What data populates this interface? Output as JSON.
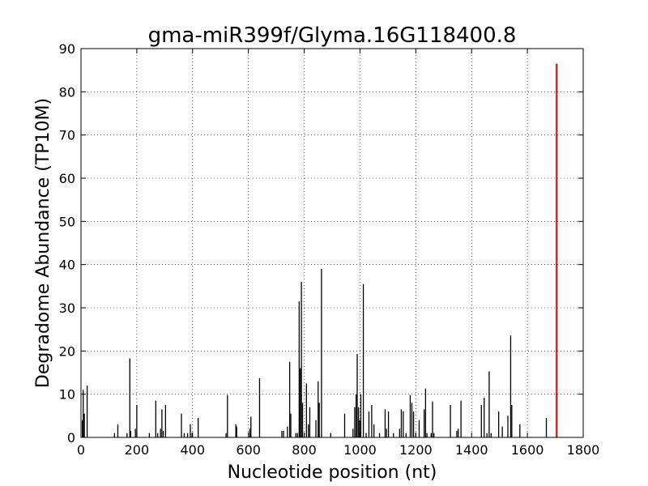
{
  "chart_data": {
    "type": "bar",
    "title": "gma-miR399f/Glyma.16G118400.8",
    "xlabel": "Nucleotide position (nt)",
    "ylabel": "Degradome Abundance (TP10M)",
    "xlim": [
      0,
      1800
    ],
    "ylim": [
      0,
      90
    ],
    "xticks": [
      0,
      200,
      400,
      600,
      800,
      1000,
      1200,
      1400,
      1600,
      1800
    ],
    "yticks": [
      0,
      10,
      20,
      30,
      40,
      50,
      60,
      70,
      80,
      90
    ],
    "grid": true,
    "grid_style": "dotted",
    "legend": "none",
    "colors": {
      "bars": "#000000",
      "target": "#d62728"
    },
    "series": [
      {
        "values": [
          [
            5,
            4
          ],
          [
            8,
            11
          ],
          [
            12,
            5.5
          ],
          [
            22,
            12
          ],
          [
            120,
            1
          ],
          [
            132,
            3
          ],
          [
            165,
            1
          ],
          [
            175,
            18.3
          ],
          [
            178,
            1.5
          ],
          [
            195,
            2
          ],
          [
            200,
            7.5
          ],
          [
            245,
            1
          ],
          [
            268,
            8.5
          ],
          [
            275,
            1
          ],
          [
            285,
            2
          ],
          [
            290,
            6.5
          ],
          [
            295,
            1.5
          ],
          [
            303,
            7.5
          ],
          [
            360,
            5.5
          ],
          [
            370,
            1
          ],
          [
            382,
            1
          ],
          [
            392,
            3
          ],
          [
            398,
            1
          ],
          [
            420,
            4.5
          ],
          [
            520,
            1
          ],
          [
            525,
            9.8
          ],
          [
            555,
            3
          ],
          [
            558,
            2.5
          ],
          [
            605,
            2
          ],
          [
            609,
            4.8
          ],
          [
            640,
            13.7
          ],
          [
            720,
            1.5
          ],
          [
            726,
            1.5
          ],
          [
            740,
            2.5
          ],
          [
            748,
            17.5
          ],
          [
            752,
            5.5
          ],
          [
            770,
            1
          ],
          [
            776,
            1
          ],
          [
            782,
            31.5
          ],
          [
            786,
            16
          ],
          [
            790,
            36
          ],
          [
            794,
            8
          ],
          [
            800,
            1
          ],
          [
            808,
            12.5
          ],
          [
            815,
            3
          ],
          [
            820,
            7
          ],
          [
            842,
            4
          ],
          [
            850,
            13
          ],
          [
            854,
            8
          ],
          [
            862,
            39
          ],
          [
            895,
            1
          ],
          [
            945,
            5.5
          ],
          [
            975,
            2
          ],
          [
            981,
            7
          ],
          [
            986,
            10
          ],
          [
            990,
            19.3
          ],
          [
            995,
            7
          ],
          [
            999,
            4
          ],
          [
            1003,
            10
          ],
          [
            1012,
            35.5
          ],
          [
            1022,
            1
          ],
          [
            1032,
            6
          ],
          [
            1042,
            7.5
          ],
          [
            1050,
            3
          ],
          [
            1070,
            1
          ],
          [
            1090,
            6.5
          ],
          [
            1095,
            2
          ],
          [
            1102,
            6
          ],
          [
            1120,
            1
          ],
          [
            1142,
            2
          ],
          [
            1148,
            6.5
          ],
          [
            1155,
            6
          ],
          [
            1165,
            1
          ],
          [
            1180,
            9.8
          ],
          [
            1186,
            8
          ],
          [
            1192,
            6
          ],
          [
            1200,
            1
          ],
          [
            1212,
            4
          ],
          [
            1230,
            6.5
          ],
          [
            1235,
            11.3
          ],
          [
            1240,
            1
          ],
          [
            1255,
            1
          ],
          [
            1260,
            8.3
          ],
          [
            1265,
            1
          ],
          [
            1324,
            7.5
          ],
          [
            1347,
            1.5
          ],
          [
            1352,
            2
          ],
          [
            1362,
            8.5
          ],
          [
            1435,
            7.5
          ],
          [
            1445,
            9.2
          ],
          [
            1455,
            1
          ],
          [
            1463,
            15.3
          ],
          [
            1470,
            1
          ],
          [
            1497,
            6
          ],
          [
            1510,
            2.5
          ],
          [
            1530,
            5
          ],
          [
            1540,
            23.6
          ],
          [
            1544,
            7.5
          ],
          [
            1573,
            3
          ],
          [
            1668,
            4.5
          ]
        ]
      },
      {
        "values": [
          [
            1705,
            86.5
          ]
        ]
      }
    ]
  }
}
